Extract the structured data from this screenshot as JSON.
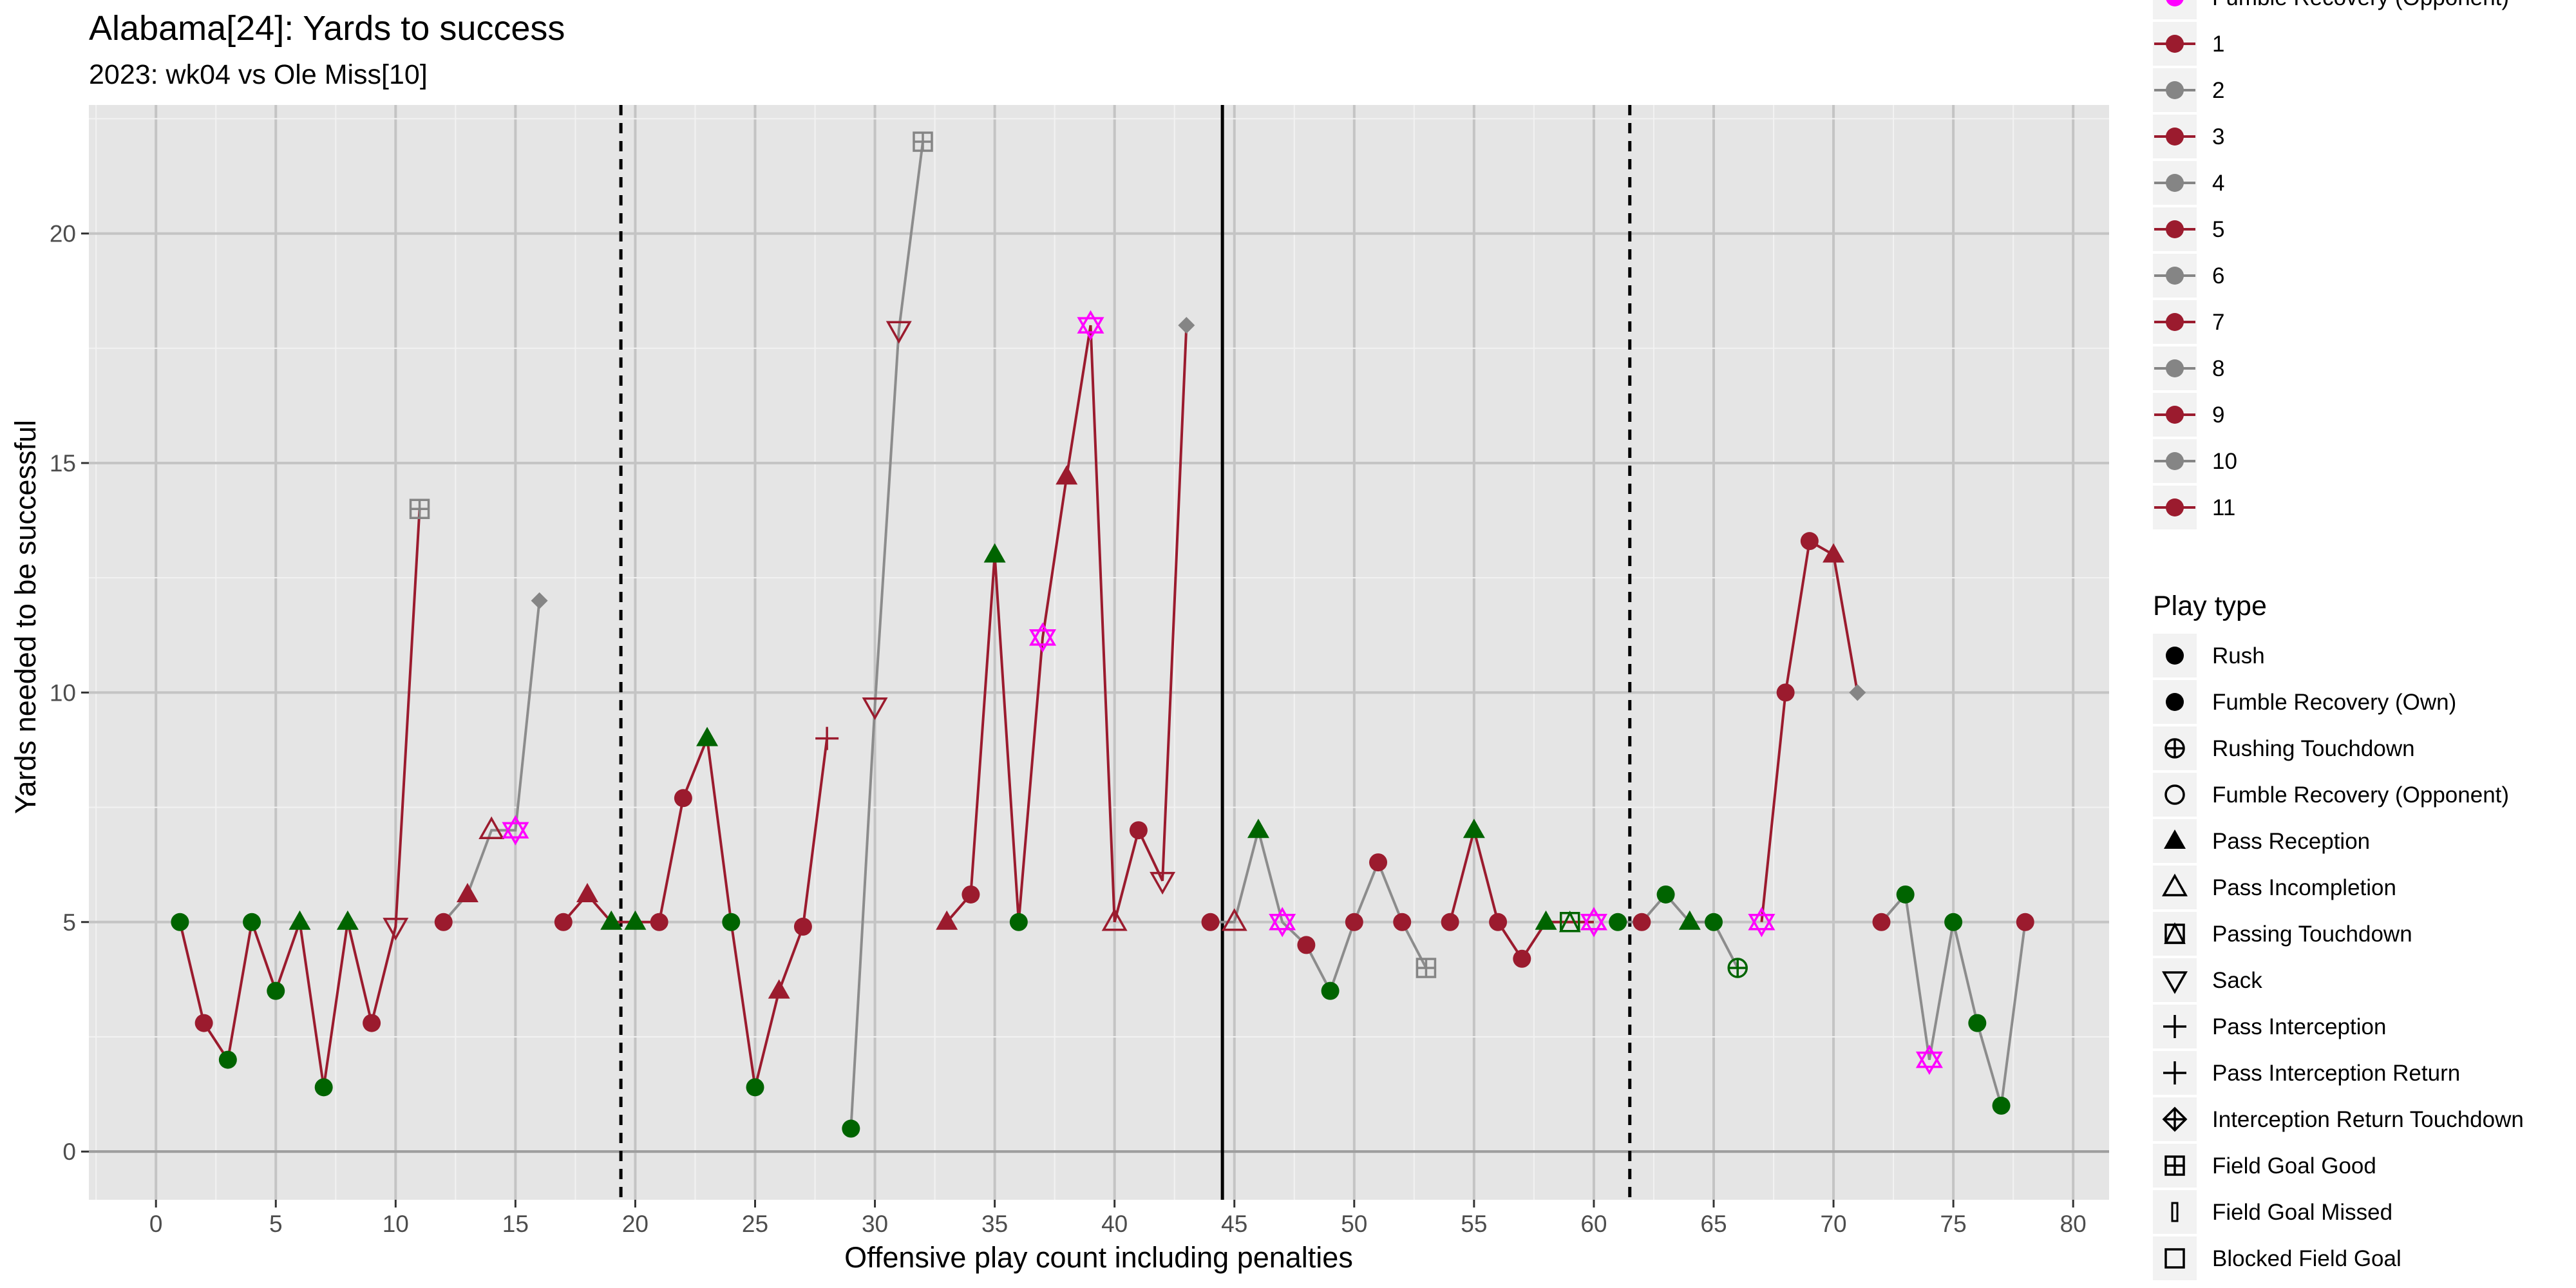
{
  "chart_data": {
    "type": "line",
    "title": "Alabama[24]: Yards to success",
    "subtitle": "2023: wk04 vs Ole Miss[10]",
    "xlabel": "Offensive play count including penalties",
    "ylabel": "Yards needed to be successful",
    "xlim": [
      -2.8,
      81.5
    ],
    "ylim": [
      -1.05,
      22.8
    ],
    "x_ticks": [
      0,
      5,
      10,
      15,
      20,
      25,
      30,
      35,
      40,
      45,
      50,
      55,
      60,
      65,
      70,
      75,
      80
    ],
    "y_ticks": [
      0,
      5,
      10,
      15,
      20
    ],
    "grid": true,
    "quarter_lines": [
      {
        "x": 19.4,
        "style": "dashed"
      },
      {
        "x": 44.5,
        "style": "solid"
      },
      {
        "x": 61.5,
        "style": "dashed"
      }
    ],
    "colors": {
      "success": "#006400",
      "fail": "#9b1b2e",
      "drive_even": "#858585",
      "fumble_opp": "#ff00ff",
      "line_odd": "#9b1b2e",
      "line_even": "#8c8c8c"
    },
    "drives": [
      {
        "drive": 1,
        "points": [
          {
            "x": 1,
            "y": 5,
            "shape": "rush",
            "color": "success"
          },
          {
            "x": 2,
            "y": 2.8,
            "shape": "rush",
            "color": "fail"
          },
          {
            "x": 3,
            "y": 2,
            "shape": "rush",
            "color": "success"
          },
          {
            "x": 4,
            "y": 5,
            "shape": "rush",
            "color": "success"
          },
          {
            "x": 5,
            "y": 3.5,
            "shape": "rush",
            "color": "success"
          },
          {
            "x": 6,
            "y": 5,
            "shape": "pass_reception",
            "color": "success"
          },
          {
            "x": 7,
            "y": 1.4,
            "shape": "rush",
            "color": "success"
          },
          {
            "x": 8,
            "y": 5,
            "shape": "pass_reception",
            "color": "success"
          },
          {
            "x": 9,
            "y": 2.8,
            "shape": "rush",
            "color": "fail"
          },
          {
            "x": 10,
            "y": 4.9,
            "shape": "sack",
            "color": "fail"
          },
          {
            "x": 11,
            "y": 14,
            "shape": "field_goal_good",
            "color": "drive_even"
          }
        ]
      },
      {
        "drive": 2,
        "points": [
          {
            "x": 12,
            "y": 5,
            "shape": "rush",
            "color": "fail"
          },
          {
            "x": 13,
            "y": 5.6,
            "shape": "pass_reception",
            "color": "fail"
          },
          {
            "x": 14,
            "y": 7,
            "shape": "pass_incompletion",
            "color": "fail"
          },
          {
            "x": 15,
            "y": 7,
            "shape": "fumble_star",
            "color": "fumble_opp"
          },
          {
            "x": 16,
            "y": 12,
            "shape": "punt",
            "color": "drive_even"
          }
        ]
      },
      {
        "drive": 3,
        "points": [
          {
            "x": 17,
            "y": 5,
            "shape": "rush",
            "color": "fail"
          },
          {
            "x": 18,
            "y": 5.6,
            "shape": "pass_reception",
            "color": "fail"
          },
          {
            "x": 19,
            "y": 5,
            "shape": "pass_reception",
            "color": "success"
          },
          {
            "x": 20,
            "y": 5,
            "shape": "pass_reception",
            "color": "success"
          },
          {
            "x": 21,
            "y": 5,
            "shape": "rush",
            "color": "fail"
          },
          {
            "x": 22,
            "y": 7.7,
            "shape": "rush",
            "color": "fail"
          },
          {
            "x": 23,
            "y": 9,
            "shape": "pass_reception",
            "color": "success"
          },
          {
            "x": 24,
            "y": 5,
            "shape": "rush",
            "color": "success"
          },
          {
            "x": 25,
            "y": 1.4,
            "shape": "rush",
            "color": "success"
          },
          {
            "x": 26,
            "y": 3.5,
            "shape": "pass_reception",
            "color": "fail"
          },
          {
            "x": 27,
            "y": 4.9,
            "shape": "rush",
            "color": "fail"
          },
          {
            "x": 28,
            "y": 9,
            "shape": "pass_interception",
            "color": "fail"
          }
        ]
      },
      {
        "drive": 4,
        "points": [
          {
            "x": 29,
            "y": 0.5,
            "shape": "rush",
            "color": "success"
          },
          {
            "x": 30,
            "y": 9.7,
            "shape": "sack",
            "color": "fail"
          },
          {
            "x": 31,
            "y": 17.9,
            "shape": "sack",
            "color": "fail"
          },
          {
            "x": 32,
            "y": 22,
            "shape": "field_goal_good",
            "color": "drive_even"
          }
        ]
      },
      {
        "drive": 5,
        "points": [
          {
            "x": 33,
            "y": 5,
            "shape": "pass_reception",
            "color": "fail"
          },
          {
            "x": 34,
            "y": 5.6,
            "shape": "rush",
            "color": "fail"
          },
          {
            "x": 35,
            "y": 13,
            "shape": "pass_reception",
            "color": "success"
          },
          {
            "x": 36,
            "y": 5,
            "shape": "rush",
            "color": "success"
          },
          {
            "x": 37,
            "y": 11.2,
            "shape": "fumble_star",
            "color": "fumble_opp"
          },
          {
            "x": 38,
            "y": 14.7,
            "shape": "pass_reception",
            "color": "fail"
          },
          {
            "x": 39,
            "y": 18,
            "shape": "fumble_star",
            "color": "fumble_opp"
          },
          {
            "x": 40,
            "y": 5,
            "shape": "pass_incompletion",
            "color": "fail"
          },
          {
            "x": 41,
            "y": 7,
            "shape": "rush",
            "color": "fail"
          },
          {
            "x": 42,
            "y": 5.9,
            "shape": "sack",
            "color": "fail"
          },
          {
            "x": 43,
            "y": 18,
            "shape": "punt",
            "color": "drive_even"
          }
        ]
      },
      {
        "drive": 6,
        "points": [
          {
            "x": 44,
            "y": 5,
            "shape": "rush",
            "color": "fail"
          },
          {
            "x": 45,
            "y": 5,
            "shape": "pass_incompletion",
            "color": "fail"
          },
          {
            "x": 46,
            "y": 7,
            "shape": "pass_reception",
            "color": "success"
          },
          {
            "x": 47,
            "y": 5,
            "shape": "fumble_star",
            "color": "fumble_opp"
          },
          {
            "x": 48,
            "y": 4.5,
            "shape": "rush",
            "color": "fail"
          },
          {
            "x": 49,
            "y": 3.5,
            "shape": "rush",
            "color": "success"
          },
          {
            "x": 50,
            "y": 5,
            "shape": "rush",
            "color": "fail"
          },
          {
            "x": 51,
            "y": 6.3,
            "shape": "rush",
            "color": "fail"
          },
          {
            "x": 52,
            "y": 5,
            "shape": "rush",
            "color": "fail"
          },
          {
            "x": 53,
            "y": 4,
            "shape": "field_goal_good",
            "color": "drive_even"
          }
        ]
      },
      {
        "drive": 7,
        "points": [
          {
            "x": 54,
            "y": 5,
            "shape": "rush",
            "color": "fail"
          },
          {
            "x": 55,
            "y": 7,
            "shape": "pass_reception",
            "color": "success"
          },
          {
            "x": 56,
            "y": 5,
            "shape": "rush",
            "color": "fail"
          },
          {
            "x": 57,
            "y": 4.2,
            "shape": "rush",
            "color": "fail"
          },
          {
            "x": 58,
            "y": 5,
            "shape": "pass_reception",
            "color": "success"
          },
          {
            "x": 59,
            "y": 5,
            "shape": "passing_touchdown",
            "color": "success"
          },
          {
            "x": 60,
            "y": 5,
            "shape": "fumble_star",
            "color": "fumble_opp"
          }
        ]
      },
      {
        "drive": 8,
        "points": [
          {
            "x": 61,
            "y": 5,
            "shape": "rush",
            "color": "success"
          },
          {
            "x": 62,
            "y": 5,
            "shape": "rush",
            "color": "fail"
          },
          {
            "x": 63,
            "y": 5.6,
            "shape": "rush",
            "color": "success"
          },
          {
            "x": 64,
            "y": 5,
            "shape": "pass_reception",
            "color": "success"
          },
          {
            "x": 65,
            "y": 5,
            "shape": "rush",
            "color": "success"
          },
          {
            "x": 66,
            "y": 4,
            "shape": "rushing_touchdown",
            "color": "success"
          }
        ]
      },
      {
        "drive": 9,
        "points": [
          {
            "x": 67,
            "y": 5,
            "shape": "fumble_star",
            "color": "fumble_opp"
          },
          {
            "x": 68,
            "y": 10,
            "shape": "rush",
            "color": "fail"
          },
          {
            "x": 69,
            "y": 13.3,
            "shape": "rush",
            "color": "fail"
          },
          {
            "x": 70,
            "y": 13,
            "shape": "pass_reception",
            "color": "fail"
          },
          {
            "x": 71,
            "y": 10,
            "shape": "punt",
            "color": "drive_even"
          }
        ]
      },
      {
        "drive": 10,
        "points": [
          {
            "x": 72,
            "y": 5,
            "shape": "rush",
            "color": "fail"
          },
          {
            "x": 73,
            "y": 5.6,
            "shape": "rush",
            "color": "success"
          },
          {
            "x": 74,
            "y": 2,
            "shape": "fumble_star",
            "color": "fumble_opp"
          },
          {
            "x": 75,
            "y": 5,
            "shape": "rush",
            "color": "success"
          },
          {
            "x": 76,
            "y": 2.8,
            "shape": "rush",
            "color": "success"
          },
          {
            "x": 77,
            "y": 1,
            "shape": "rush",
            "color": "success"
          },
          {
            "x": 78,
            "y": 5,
            "shape": "rush",
            "color": "fail"
          }
        ]
      }
    ],
    "legend_drive": {
      "items": [
        {
          "label": "Fumble Recovery (Opponent)",
          "color": "#ff00ff",
          "partial": true
        },
        {
          "label": "1",
          "color": "#9b1b2e"
        },
        {
          "label": "2",
          "color": "#858585"
        },
        {
          "label": "3",
          "color": "#9b1b2e"
        },
        {
          "label": "4",
          "color": "#858585"
        },
        {
          "label": "5",
          "color": "#9b1b2e"
        },
        {
          "label": "6",
          "color": "#858585"
        },
        {
          "label": "7",
          "color": "#9b1b2e"
        },
        {
          "label": "8",
          "color": "#858585"
        },
        {
          "label": "9",
          "color": "#9b1b2e"
        },
        {
          "label": "10",
          "color": "#858585"
        },
        {
          "label": "11",
          "color": "#9b1b2e"
        }
      ]
    },
    "legend_playtype": {
      "title": "Play type",
      "items": [
        {
          "label": "Rush",
          "shape": "rush"
        },
        {
          "label": "Fumble Recovery (Own)",
          "shape": "rush"
        },
        {
          "label": "Rushing Touchdown",
          "shape": "rushing_touchdown"
        },
        {
          "label": "Fumble Recovery (Opponent)",
          "shape": "open_circle"
        },
        {
          "label": "Pass Reception",
          "shape": "pass_reception"
        },
        {
          "label": "Pass Incompletion",
          "shape": "pass_incompletion"
        },
        {
          "label": "Passing Touchdown",
          "shape": "passing_touchdown"
        },
        {
          "label": "Sack",
          "shape": "sack"
        },
        {
          "label": "Pass Interception",
          "shape": "pass_interception"
        },
        {
          "label": "Pass Interception Return",
          "shape": "pass_interception"
        },
        {
          "label": "Interception Return Touchdown",
          "shape": "int_return_td"
        },
        {
          "label": "Field Goal Good",
          "shape": "field_goal_good"
        },
        {
          "label": "Field Goal Missed",
          "shape": "field_goal_missed"
        },
        {
          "label": "Blocked Field Goal",
          "shape": "open_square"
        }
      ]
    }
  }
}
